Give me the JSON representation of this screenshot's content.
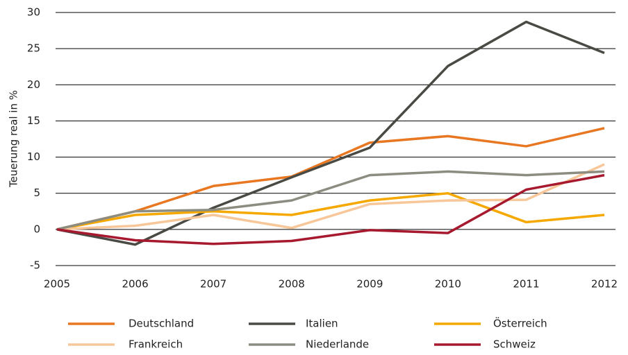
{
  "chart_data": {
    "type": "line",
    "y_label": "Teuerung real in %",
    "categories": [
      "2005",
      "2006",
      "2007",
      "2008",
      "2009",
      "2010",
      "2011",
      "2012"
    ],
    "series": [
      {
        "name": "Deutschland",
        "color": "#e87722",
        "values": [
          0,
          2.5,
          6,
          7.3,
          12,
          12.9,
          11.5,
          14
        ]
      },
      {
        "name": "Italien",
        "color": "#4a4a45",
        "values": [
          0,
          -2.1,
          3,
          7.2,
          11.3,
          22.6,
          28.7,
          24.4
        ]
      },
      {
        "name": "Österreich",
        "color": "#f5a800",
        "values": [
          0,
          2,
          2.5,
          2,
          4,
          5,
          1,
          2
        ]
      },
      {
        "name": "Frankreich",
        "color": "#f7c79a",
        "values": [
          0,
          0.5,
          2,
          0.2,
          3.5,
          4,
          4.1,
          9
        ]
      },
      {
        "name": "Niederlande",
        "color": "#8c8c80",
        "values": [
          0,
          2.5,
          2.7,
          4,
          7.5,
          8,
          7.5,
          8
        ]
      },
      {
        "name": "Schweiz",
        "color": "#a6192e",
        "values": [
          0,
          -1.5,
          -2,
          -1.6,
          -0.1,
          -0.5,
          5.5,
          7.5
        ]
      }
    ],
    "ylim": [
      -5,
      30
    ],
    "yticks": [
      -5,
      0,
      5,
      10,
      15,
      20,
      25,
      30
    ],
    "grid": true
  }
}
